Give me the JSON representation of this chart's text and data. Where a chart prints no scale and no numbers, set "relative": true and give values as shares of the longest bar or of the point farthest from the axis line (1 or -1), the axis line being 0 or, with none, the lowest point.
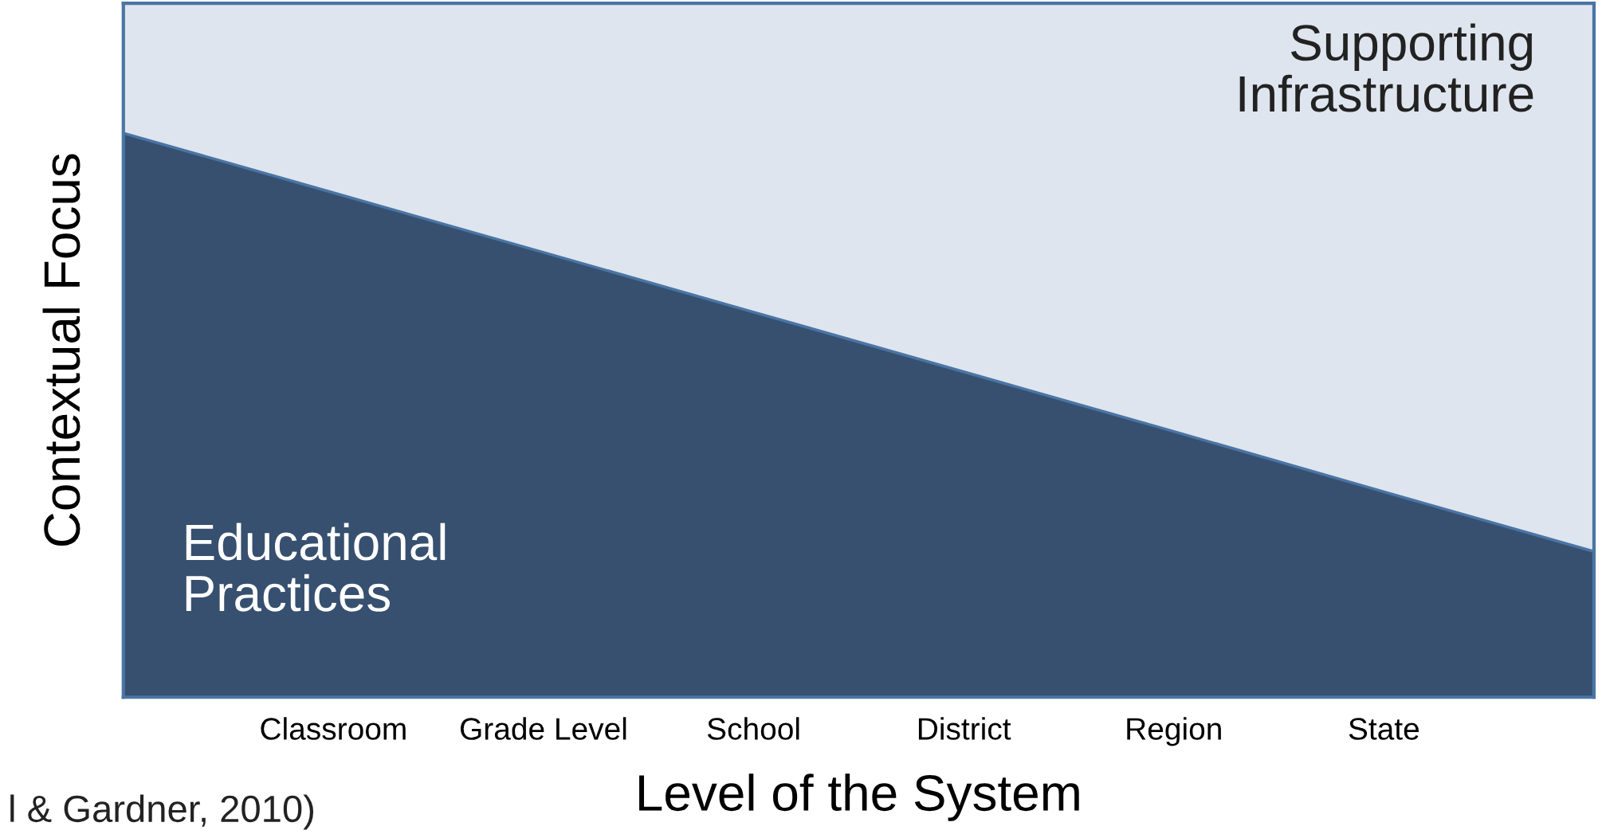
{
  "chart_data": {
    "type": "area",
    "stacked": true,
    "relative": true,
    "legend": false,
    "xlabel": "Level of the System",
    "ylabel": "Contextual Focus",
    "categories": [
      null,
      "Classroom",
      "Grade Level",
      "School",
      "District",
      "Region",
      "State",
      null
    ],
    "series": [
      {
        "name": "Educational Practices",
        "color": "#37506f",
        "values": [
          0.813,
          0.727,
          0.641,
          0.555,
          0.469,
          0.383,
          0.296,
          0.21
        ]
      },
      {
        "name": "Supporting Infrastructure",
        "color": "#dfe5ee",
        "values": [
          0.187,
          0.273,
          0.359,
          0.445,
          0.531,
          0.617,
          0.704,
          0.79
        ]
      }
    ],
    "annotations": [
      "l & Gardner, 2010)"
    ]
  }
}
